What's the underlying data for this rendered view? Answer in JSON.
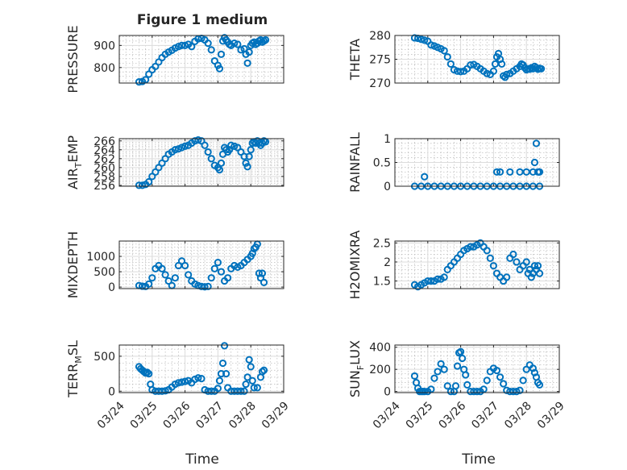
{
  "figure": {
    "title": "Figure 1 medium",
    "xlabel": "Time"
  },
  "colors": {
    "marker": "#0072BD",
    "axes": "#262626"
  },
  "chart_data": [
    {
      "id": "pressure",
      "type": "scatter",
      "ylabel": "PRESSURE",
      "xlim": [
        0,
        5
      ],
      "ylim": [
        730,
        945
      ],
      "yticks": [
        800,
        900
      ],
      "ytick_labels": [
        "800",
        "900"
      ],
      "xticks": [
        0,
        1,
        2,
        3,
        4,
        5
      ],
      "xtick_labels": [],
      "marker": "o",
      "grid": "major+minor",
      "x": [
        0.6,
        0.7,
        0.8,
        0.9,
        1.0,
        1.1,
        1.2,
        1.3,
        1.4,
        1.5,
        1.6,
        1.7,
        1.8,
        1.9,
        2.0,
        2.1,
        2.2,
        2.3,
        2.4,
        2.5,
        2.6,
        2.7,
        2.8,
        2.9,
        3.0,
        3.05,
        3.1,
        3.15,
        3.2,
        3.25,
        3.3,
        3.35,
        3.4,
        3.5,
        3.6,
        3.7,
        3.8,
        3.85,
        3.9,
        3.95,
        4.0,
        4.05,
        4.1,
        4.15,
        4.2,
        4.25,
        4.3,
        4.35,
        4.4,
        4.45
      ],
      "y": [
        735,
        737,
        745,
        770,
        790,
        805,
        825,
        845,
        860,
        870,
        878,
        888,
        895,
        900,
        900,
        905,
        895,
        918,
        930,
        932,
        925,
        910,
        880,
        830,
        810,
        795,
        860,
        920,
        935,
        925,
        915,
        905,
        900,
        910,
        905,
        880,
        885,
        860,
        820,
        870,
        900,
        910,
        915,
        905,
        910,
        920,
        925,
        915,
        920,
        925
      ]
    },
    {
      "id": "theta",
      "type": "scatter",
      "ylabel": "THETA",
      "xlim": [
        0,
        5
      ],
      "ylim": [
        270,
        280
      ],
      "yticks": [
        270,
        275,
        280
      ],
      "ytick_labels": [
        "270",
        "275",
        "280"
      ],
      "xticks": [
        0,
        1,
        2,
        3,
        4,
        5
      ],
      "xtick_labels": [],
      "marker": "o",
      "grid": "major+minor",
      "x": [
        0.6,
        0.7,
        0.8,
        0.9,
        1.0,
        1.1,
        1.2,
        1.3,
        1.4,
        1.5,
        1.6,
        1.7,
        1.8,
        1.9,
        2.0,
        2.1,
        2.2,
        2.3,
        2.4,
        2.5,
        2.6,
        2.7,
        2.8,
        2.9,
        3.0,
        3.05,
        3.1,
        3.15,
        3.2,
        3.25,
        3.3,
        3.35,
        3.4,
        3.5,
        3.6,
        3.7,
        3.8,
        3.85,
        3.9,
        3.95,
        4.0,
        4.05,
        4.1,
        4.15,
        4.2,
        4.25,
        4.3,
        4.35,
        4.4,
        4.45
      ],
      "y": [
        279.5,
        279.4,
        279.2,
        279,
        278.8,
        278,
        277.8,
        277.5,
        277.2,
        276.8,
        275.5,
        274,
        272.8,
        272.5,
        272.4,
        272.5,
        273,
        273.8,
        273.9,
        273.5,
        273,
        272.5,
        272,
        271.8,
        272.5,
        274,
        275.5,
        276.2,
        275,
        274,
        271.5,
        271.2,
        271.8,
        272,
        272.5,
        273,
        273.5,
        274,
        273.8,
        273.2,
        272.8,
        273,
        272.9,
        273.2,
        273,
        273.5,
        273.2,
        272.9,
        273.1,
        273
      ]
    },
    {
      "id": "air_temp",
      "type": "scatter",
      "ylabel": "AIR_TEMP",
      "ylabel_parts": [
        "AIR",
        "T",
        "EMP"
      ],
      "xlim": [
        0,
        5
      ],
      "ylim": [
        255.8,
        266.5
      ],
      "yticks": [
        256,
        258,
        260,
        262,
        264,
        266
      ],
      "ytick_labels": [
        "256",
        "258",
        "260",
        "262",
        "264",
        "266"
      ],
      "xticks": [
        0,
        1,
        2,
        3,
        4,
        5
      ],
      "xtick_labels": [],
      "marker": "o",
      "grid": "major+minor",
      "x": [
        0.6,
        0.7,
        0.8,
        0.9,
        1.0,
        1.1,
        1.2,
        1.3,
        1.4,
        1.5,
        1.6,
        1.7,
        1.8,
        1.9,
        2.0,
        2.1,
        2.2,
        2.3,
        2.4,
        2.5,
        2.6,
        2.7,
        2.8,
        2.9,
        3.0,
        3.05,
        3.1,
        3.15,
        3.2,
        3.25,
        3.3,
        3.35,
        3.4,
        3.5,
        3.6,
        3.7,
        3.8,
        3.85,
        3.9,
        3.95,
        4.0,
        4.05,
        4.1,
        4.15,
        4.2,
        4.25,
        4.3,
        4.35,
        4.4,
        4.45
      ],
      "y": [
        256,
        256,
        256.2,
        256.8,
        258,
        259,
        260,
        261,
        262,
        263,
        263.5,
        264,
        264.2,
        264.5,
        264.8,
        265,
        265.5,
        266,
        266.2,
        266,
        265,
        263.5,
        262,
        260.5,
        260,
        259.5,
        261,
        263,
        264.5,
        264,
        263.5,
        264,
        265,
        264.8,
        264.5,
        263.5,
        262.5,
        261,
        260.2,
        262.5,
        264,
        265.5,
        265.8,
        265.5,
        266,
        265.5,
        265,
        265.5,
        266,
        265.8
      ]
    },
    {
      "id": "rainfall",
      "type": "scatter",
      "ylabel": "RAINFALL",
      "xlim": [
        0,
        5
      ],
      "ylim": [
        0,
        1
      ],
      "yticks": [
        0,
        0.5,
        1
      ],
      "ytick_labels": [
        "0",
        "0.5",
        "1"
      ],
      "xticks": [
        0,
        1,
        2,
        3,
        4,
        5
      ],
      "xtick_labels": [],
      "marker": "o",
      "grid": "major+minor",
      "x": [
        0.6,
        0.8,
        1.0,
        1.2,
        1.4,
        1.6,
        1.8,
        2.0,
        2.2,
        2.4,
        2.6,
        2.8,
        3.0,
        3.2,
        3.4,
        3.6,
        3.8,
        4.0,
        4.2,
        4.4,
        0.9,
        3.1,
        3.2,
        3.5,
        3.8,
        4.0,
        4.2,
        4.25,
        4.3,
        4.35,
        4.38,
        4.4
      ],
      "y": [
        0,
        0,
        0,
        0,
        0,
        0,
        0,
        0,
        0,
        0,
        0,
        0,
        0,
        0,
        0,
        0,
        0,
        0,
        0,
        0,
        0.2,
        0.3,
        0.3,
        0.3,
        0.3,
        0.3,
        0.3,
        0.5,
        0.9,
        0.3,
        0.3,
        0.3
      ]
    },
    {
      "id": "mixdepth",
      "type": "scatter",
      "ylabel": "MIXDEPTH",
      "xlim": [
        0,
        5
      ],
      "ylim": [
        -50,
        1500
      ],
      "yticks": [
        0,
        500,
        1000
      ],
      "ytick_labels": [
        "0",
        "500",
        "1000"
      ],
      "xticks": [
        0,
        1,
        2,
        3,
        4,
        5
      ],
      "xtick_labels": [],
      "marker": "o",
      "grid": "major+minor",
      "x": [
        0.6,
        0.7,
        0.8,
        0.9,
        1.0,
        1.1,
        1.2,
        1.3,
        1.4,
        1.5,
        1.6,
        1.7,
        1.8,
        1.9,
        2.0,
        2.1,
        2.2,
        2.3,
        2.4,
        2.5,
        2.6,
        2.7,
        2.8,
        2.9,
        3.0,
        3.1,
        3.2,
        3.3,
        3.4,
        3.5,
        3.6,
        3.7,
        3.8,
        3.9,
        4.0,
        4.05,
        4.1,
        4.15,
        4.2,
        4.25,
        4.3,
        4.35,
        4.4
      ],
      "y": [
        50,
        30,
        20,
        100,
        300,
        600,
        700,
        600,
        400,
        200,
        50,
        300,
        700,
        850,
        700,
        400,
        200,
        100,
        50,
        20,
        10,
        20,
        300,
        600,
        800,
        500,
        200,
        300,
        600,
        700,
        650,
        700,
        800,
        900,
        1000,
        1100,
        1250,
        1300,
        1400,
        450,
        300,
        450,
        150
      ]
    },
    {
      "id": "h2omixra",
      "type": "scatter",
      "ylabel": "H2OMIXRA",
      "xlim": [
        0,
        5
      ],
      "ylim": [
        1.3,
        2.55
      ],
      "yticks": [
        1.5,
        2,
        2.5
      ],
      "ytick_labels": [
        "1.5",
        "2",
        "2.5"
      ],
      "xticks": [
        0,
        1,
        2,
        3,
        4,
        5
      ],
      "xtick_labels": [],
      "marker": "o",
      "grid": "major+minor",
      "x": [
        0.6,
        0.7,
        0.8,
        0.9,
        1.0,
        1.1,
        1.2,
        1.3,
        1.4,
        1.5,
        1.6,
        1.7,
        1.8,
        1.9,
        2.0,
        2.1,
        2.2,
        2.3,
        2.4,
        2.5,
        2.6,
        2.7,
        2.8,
        2.9,
        3.0,
        3.1,
        3.2,
        3.3,
        3.4,
        3.5,
        3.6,
        3.7,
        3.8,
        3.9,
        4.0,
        4.05,
        4.1,
        4.15,
        4.2,
        4.25,
        4.3,
        4.35,
        4.4
      ],
      "y": [
        1.4,
        1.35,
        1.4,
        1.45,
        1.5,
        1.5,
        1.5,
        1.55,
        1.55,
        1.6,
        1.8,
        1.9,
        2.0,
        2.1,
        2.2,
        2.3,
        2.35,
        2.4,
        2.4,
        2.45,
        2.5,
        2.4,
        2.3,
        2.1,
        1.9,
        1.7,
        1.6,
        1.5,
        1.6,
        2.1,
        2.2,
        2.0,
        1.8,
        1.9,
        2.0,
        1.7,
        1.8,
        1.6,
        1.7,
        1.9,
        1.8,
        1.9,
        1.7
      ]
    },
    {
      "id": "terr_msl",
      "type": "scatter",
      "ylabel": "TERR_MSL",
      "ylabel_parts": [
        "TERR",
        "M",
        "SL"
      ],
      "xlim": [
        0,
        5
      ],
      "ylim": [
        -20,
        660
      ],
      "yticks": [
        0,
        500
      ],
      "ytick_labels": [
        "0",
        "500"
      ],
      "xticks": [
        0,
        1,
        2,
        3,
        4,
        5
      ],
      "xtick_labels": [
        "03/24",
        "03/25",
        "03/26",
        "03/27",
        "03/28",
        "03/29"
      ],
      "marker": "o",
      "grid": "major+minor",
      "x": [
        0.6,
        0.65,
        0.7,
        0.75,
        0.8,
        0.85,
        0.9,
        0.95,
        1.0,
        1.1,
        1.2,
        1.3,
        1.4,
        1.5,
        1.6,
        1.7,
        1.8,
        1.9,
        2.0,
        2.1,
        2.2,
        2.3,
        2.4,
        2.5,
        2.6,
        2.7,
        2.8,
        2.9,
        3.0,
        3.05,
        3.1,
        3.15,
        3.2,
        3.25,
        3.3,
        3.4,
        3.5,
        3.6,
        3.7,
        3.8,
        3.85,
        3.9,
        3.95,
        4.0,
        4.05,
        4.1,
        4.2,
        4.3,
        4.35,
        4.4
      ],
      "y": [
        350,
        320,
        300,
        280,
        260,
        270,
        250,
        100,
        20,
        0,
        0,
        0,
        5,
        20,
        60,
        100,
        120,
        130,
        140,
        150,
        120,
        170,
        190,
        180,
        20,
        0,
        0,
        0,
        40,
        150,
        250,
        400,
        650,
        250,
        50,
        0,
        0,
        0,
        0,
        0,
        100,
        200,
        450,
        350,
        150,
        50,
        50,
        200,
        280,
        300
      ]
    },
    {
      "id": "sun_flux",
      "type": "scatter",
      "ylabel": "SUN_FLUX",
      "ylabel_parts": [
        "SUN",
        "F",
        "LUX"
      ],
      "xlim": [
        0,
        5
      ],
      "ylim": [
        -10,
        420
      ],
      "yticks": [
        0,
        200,
        400
      ],
      "ytick_labels": [
        "0",
        "200",
        "400"
      ],
      "xticks": [
        0,
        1,
        2,
        3,
        4,
        5
      ],
      "xtick_labels": [
        "03/24",
        "03/25",
        "03/26",
        "03/27",
        "03/28",
        "03/29"
      ],
      "marker": "o",
      "grid": "major+minor",
      "x": [
        0.6,
        0.65,
        0.7,
        0.75,
        0.8,
        0.85,
        0.9,
        1.0,
        1.1,
        1.2,
        1.3,
        1.4,
        1.5,
        1.6,
        1.7,
        1.8,
        1.85,
        1.9,
        1.95,
        2.0,
        2.05,
        2.1,
        2.15,
        2.2,
        2.3,
        2.4,
        2.5,
        2.6,
        2.7,
        2.8,
        2.9,
        3.0,
        3.1,
        3.2,
        3.3,
        3.4,
        3.5,
        3.6,
        3.7,
        3.8,
        3.9,
        4.0,
        4.1,
        4.2,
        4.25,
        4.3,
        4.35,
        4.4
      ],
      "y": [
        140,
        80,
        30,
        0,
        0,
        0,
        0,
        0,
        20,
        120,
        180,
        250,
        200,
        50,
        0,
        0,
        50,
        230,
        350,
        360,
        300,
        200,
        150,
        60,
        0,
        0,
        0,
        0,
        20,
        100,
        180,
        210,
        190,
        130,
        70,
        10,
        0,
        0,
        0,
        10,
        100,
        200,
        240,
        210,
        170,
        130,
        80,
        60
      ]
    }
  ]
}
